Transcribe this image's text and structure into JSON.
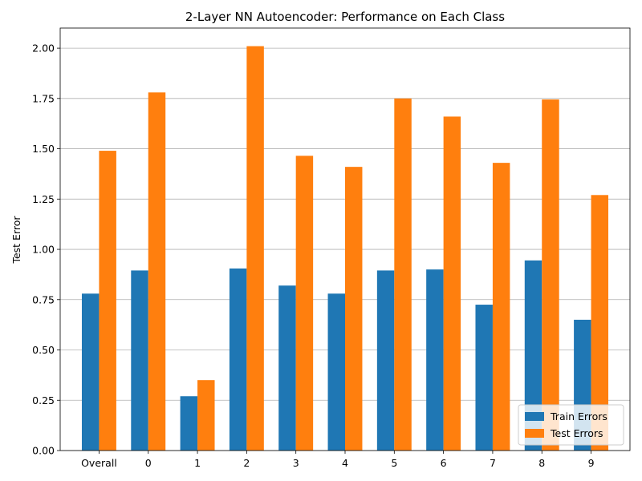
{
  "chart_data": {
    "type": "bar",
    "title": "2-Layer NN Autoencoder: Performance on Each Class",
    "xlabel": "",
    "ylabel": "Test Error",
    "categories": [
      "Overall",
      "0",
      "1",
      "2",
      "3",
      "4",
      "5",
      "6",
      "7",
      "8",
      "9"
    ],
    "series": [
      {
        "name": "Train Errors",
        "color": "#1f77b4",
        "values": [
          0.78,
          0.895,
          0.27,
          0.905,
          0.82,
          0.78,
          0.895,
          0.9,
          0.725,
          0.945,
          0.65
        ]
      },
      {
        "name": "Test Errors",
        "color": "#ff7f0e",
        "values": [
          1.49,
          1.78,
          0.35,
          2.01,
          1.465,
          1.41,
          1.75,
          1.66,
          1.43,
          1.745,
          1.27
        ]
      }
    ],
    "ylim": [
      0,
      2.1
    ],
    "yticks": [
      "0.00",
      "0.25",
      "0.50",
      "0.75",
      "1.00",
      "1.25",
      "1.50",
      "1.75",
      "2.00"
    ],
    "grid": "horizontal",
    "legend_position": "lower-right"
  }
}
